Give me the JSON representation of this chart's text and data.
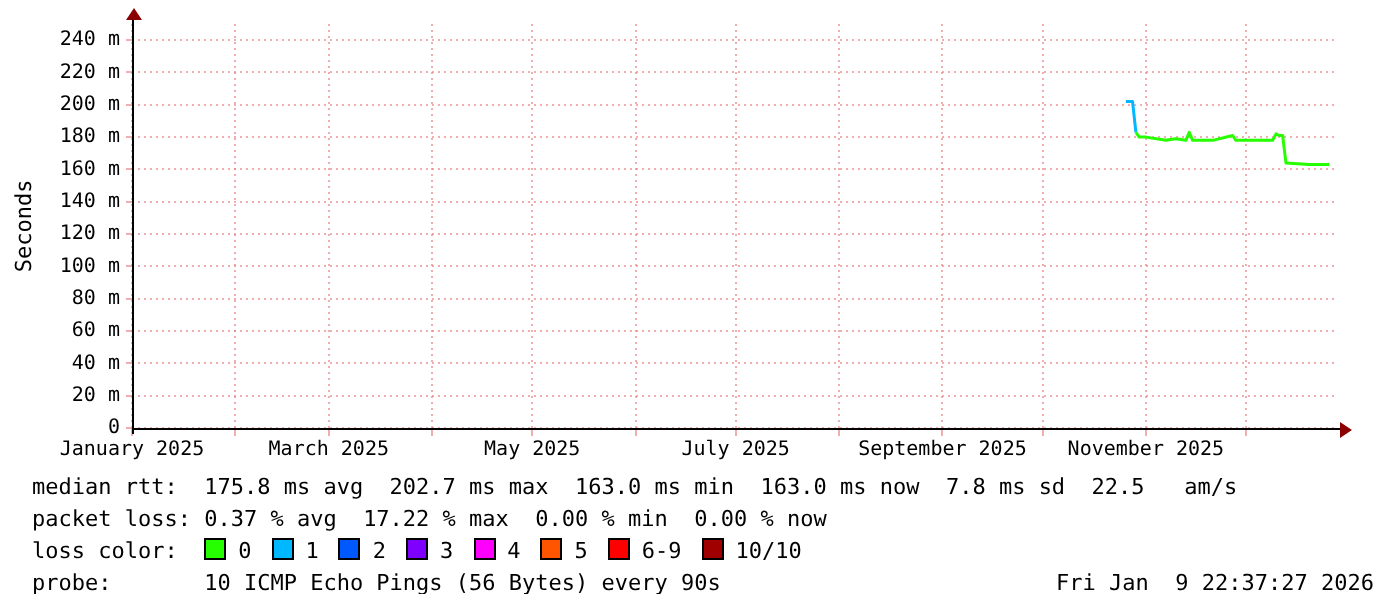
{
  "chart_data": {
    "type": "line",
    "ylabel": "Seconds",
    "legend_title": "loss color:",
    "legend": "bottom",
    "grid": true,
    "marker": "none",
    "line_style": "solid",
    "xlim": [
      "2025-01-01",
      "2025-12-28"
    ],
    "xticks": [
      {
        "value": "2025-01-01",
        "label": "January 2025"
      },
      {
        "value": "2025-02-01",
        "label": null
      },
      {
        "value": "2025-03-01",
        "label": "March 2025"
      },
      {
        "value": "2025-04-01",
        "label": null
      },
      {
        "value": "2025-05-01",
        "label": "May 2025"
      },
      {
        "value": "2025-06-01",
        "label": null
      },
      {
        "value": "2025-07-01",
        "label": "July 2025"
      },
      {
        "value": "2025-08-01",
        "label": null
      },
      {
        "value": "2025-09-01",
        "label": "September 2025"
      },
      {
        "value": "2025-10-01",
        "label": null
      },
      {
        "value": "2025-11-01",
        "label": "November 2025"
      },
      {
        "value": "2025-12-01",
        "label": null
      }
    ],
    "ylim": [
      0,
      250
    ],
    "yticks": [
      0,
      {
        "value": 20,
        "label": "20 m"
      },
      {
        "value": 40,
        "label": "40 m"
      },
      {
        "value": 60,
        "label": "60 m"
      },
      {
        "value": 80,
        "label": "80 m"
      },
      {
        "value": 100,
        "label": "100 m"
      },
      {
        "value": 120,
        "label": "120 m"
      },
      {
        "value": 140,
        "label": "140 m"
      },
      {
        "value": 160,
        "label": "160 m"
      },
      {
        "value": 180,
        "label": "180 m"
      },
      {
        "value": 200,
        "label": "200 m"
      },
      {
        "value": 220,
        "label": "220 m"
      },
      {
        "value": 240,
        "label": "240 m"
      }
    ],
    "series": [
      {
        "name": "0",
        "color": "#26ff00",
        "x": [
          "2025-10-29",
          "2025-10-30",
          "2025-11-01",
          "2025-11-07",
          "2025-11-10",
          "2025-11-13",
          "2025-11-14",
          "2025-11-15",
          "2025-11-21",
          "2025-11-27",
          "2025-11-28",
          "2025-12-09",
          "2025-12-10",
          "2025-12-11",
          "2025-12-12",
          "2025-12-13",
          "2025-12-20",
          "2025-12-26"
        ],
        "values": [
          183,
          180,
          180,
          178,
          179,
          178,
          183,
          178,
          178,
          181,
          178,
          178,
          182,
          181,
          181,
          164,
          163,
          163
        ]
      },
      {
        "name": "1",
        "color": "#00b8ff",
        "x": [
          "2025-10-26",
          "2025-10-28",
          "2025-10-29"
        ],
        "values": [
          202,
          202,
          183
        ]
      },
      {
        "name": "2",
        "color": "#0059ff"
      },
      {
        "name": "3",
        "color": "#7e00ff"
      },
      {
        "name": "4",
        "color": "#ff00ff"
      },
      {
        "name": "5",
        "color": "#ff5500"
      },
      {
        "name": "6-9",
        "color": "#ff0000"
      },
      {
        "name": "10/10",
        "color": "#a10000"
      }
    ],
    "annotations": [
      "median rtt:  175.8 ms avg  202.7 ms max  163.0 ms min  163.0 ms now  7.8 ms sd  22.5   am/s",
      "packet loss: 0.37 % avg  17.22 % max  0.00 % min  0.00 % now",
      "probe:       10 ICMP Echo Pings (56 Bytes) every 90s",
      "Fri Jan  9 22:37:27 2026"
    ]
  }
}
